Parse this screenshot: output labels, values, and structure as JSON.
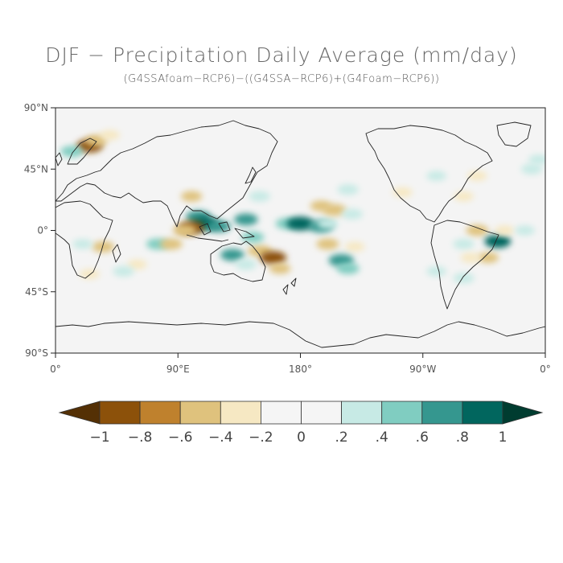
{
  "title": "DJF − Precipitation Daily Average (mm/day)",
  "subtitle": "(G4SSAfoam−RCP6)−((G4SSA−RCP6)+(G4Foam−RCP6))",
  "map": {
    "projection": "equirectangular",
    "lon_range": [
      0,
      360
    ],
    "lat_range": [
      -90,
      90
    ],
    "background_color": "#f4f4f4",
    "coastline_color": "#222222",
    "lat_ticks": [
      {
        "value": 90,
        "label": "90°N"
      },
      {
        "value": 45,
        "label": "45°N"
      },
      {
        "value": 0,
        "label": "0°"
      },
      {
        "value": -45,
        "label": "45°S"
      },
      {
        "value": -90,
        "label": "90°S"
      }
    ],
    "lon_ticks": [
      {
        "value": 0,
        "label": "0°"
      },
      {
        "value": 90,
        "label": "90°E"
      },
      {
        "value": 180,
        "label": "180°"
      },
      {
        "value": 270,
        "label": "90°W"
      },
      {
        "value": 360,
        "label": "0°"
      }
    ],
    "anomalies": [
      {
        "lon": 25,
        "lat": 62,
        "v": -0.8
      },
      {
        "lon": 30,
        "lat": 66,
        "v": -0.5
      },
      {
        "lon": 12,
        "lat": 58,
        "v": 0.5
      },
      {
        "lon": 40,
        "lat": 70,
        "v": -0.3
      },
      {
        "lon": 100,
        "lat": 25,
        "v": -0.4
      },
      {
        "lon": 105,
        "lat": 10,
        "v": 0.7
      },
      {
        "lon": 110,
        "lat": 5,
        "v": 0.9
      },
      {
        "lon": 100,
        "lat": 2,
        "v": -0.8
      },
      {
        "lon": 95,
        "lat": 0,
        "v": -0.6
      },
      {
        "lon": 120,
        "lat": 3,
        "v": 0.6
      },
      {
        "lon": 140,
        "lat": 8,
        "v": 0.6
      },
      {
        "lon": 150,
        "lat": 25,
        "v": 0.4
      },
      {
        "lon": 170,
        "lat": 5,
        "v": 0.5
      },
      {
        "lon": 180,
        "lat": 5,
        "v": 0.9
      },
      {
        "lon": 195,
        "lat": 3,
        "v": 0.7
      },
      {
        "lon": 200,
        "lat": 5,
        "v": 0.4
      },
      {
        "lon": 205,
        "lat": 15,
        "v": -0.6
      },
      {
        "lon": 195,
        "lat": 18,
        "v": -0.4
      },
      {
        "lon": 218,
        "lat": 12,
        "v": 0.4
      },
      {
        "lon": 215,
        "lat": 30,
        "v": 0.4
      },
      {
        "lon": 220,
        "lat": -12,
        "v": -0.3
      },
      {
        "lon": 200,
        "lat": -10,
        "v": -0.5
      },
      {
        "lon": 210,
        "lat": -22,
        "v": 0.7
      },
      {
        "lon": 215,
        "lat": -28,
        "v": 0.5
      },
      {
        "lon": 150,
        "lat": -15,
        "v": -0.6
      },
      {
        "lon": 160,
        "lat": -20,
        "v": -0.8
      },
      {
        "lon": 165,
        "lat": -28,
        "v": -0.4
      },
      {
        "lon": 130,
        "lat": -18,
        "v": 0.6
      },
      {
        "lon": 140,
        "lat": -25,
        "v": 0.4
      },
      {
        "lon": 145,
        "lat": -5,
        "v": 0.5
      },
      {
        "lon": 75,
        "lat": -10,
        "v": 0.5
      },
      {
        "lon": 60,
        "lat": -25,
        "v": -0.3
      },
      {
        "lon": 50,
        "lat": -30,
        "v": 0.4
      },
      {
        "lon": 85,
        "lat": -10,
        "v": -0.5
      },
      {
        "lon": 35,
        "lat": -12,
        "v": -0.5
      },
      {
        "lon": 20,
        "lat": -10,
        "v": 0.3
      },
      {
        "lon": 25,
        "lat": -32,
        "v": -0.3
      },
      {
        "lon": 310,
        "lat": 0,
        "v": -0.5
      },
      {
        "lon": 325,
        "lat": -8,
        "v": 0.8
      },
      {
        "lon": 318,
        "lat": -20,
        "v": -0.4
      },
      {
        "lon": 300,
        "lat": -10,
        "v": 0.4
      },
      {
        "lon": 300,
        "lat": -35,
        "v": 0.4
      },
      {
        "lon": 305,
        "lat": -20,
        "v": -0.3
      },
      {
        "lon": 280,
        "lat": -30,
        "v": 0.3
      },
      {
        "lon": 330,
        "lat": 0,
        "v": -0.3
      },
      {
        "lon": 345,
        "lat": 0,
        "v": 0.3
      },
      {
        "lon": 300,
        "lat": 25,
        "v": -0.3
      },
      {
        "lon": 310,
        "lat": 40,
        "v": -0.3
      },
      {
        "lon": 350,
        "lat": 45,
        "v": 0.4
      },
      {
        "lon": 355,
        "lat": 52,
        "v": 0.3
      },
      {
        "lon": 280,
        "lat": 40,
        "v": 0.3
      },
      {
        "lon": 255,
        "lat": 28,
        "v": -0.3
      }
    ]
  },
  "colorbar": {
    "colors": [
      "#543005",
      "#8c510a",
      "#bf812d",
      "#dfc27d",
      "#f6e8c3",
      "#f5f5f5",
      "#f5f5f5",
      "#c7eae5",
      "#80cdc1",
      "#35978f",
      "#01665e",
      "#003c30"
    ],
    "labels": [
      "−1",
      "−.8",
      "−.6",
      "−.4",
      "−.2",
      "0",
      ".2",
      ".4",
      ".6",
      ".8",
      "1"
    ]
  }
}
